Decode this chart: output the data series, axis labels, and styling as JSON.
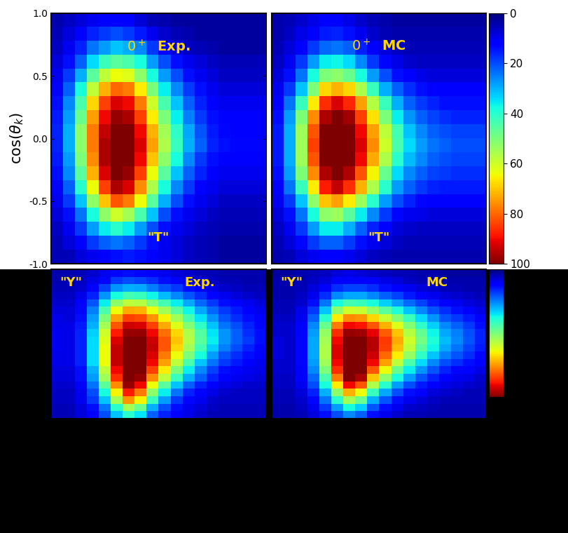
{
  "text_color": "#FFD700",
  "colorbar_ticks": [
    0,
    20,
    40,
    60,
    80,
    100
  ],
  "vmin": 0,
  "vmax": 100,
  "T_exp": [
    [
      5,
      5,
      8,
      10,
      12,
      14,
      15,
      14,
      12,
      10,
      8,
      6,
      5,
      4,
      3,
      3,
      3,
      3
    ],
    [
      5,
      8,
      12,
      18,
      22,
      24,
      22,
      18,
      14,
      10,
      8,
      6,
      5,
      4,
      3,
      3,
      3,
      3
    ],
    [
      6,
      10,
      18,
      28,
      36,
      40,
      36,
      28,
      20,
      14,
      10,
      8,
      6,
      5,
      4,
      4,
      4,
      4
    ],
    [
      8,
      14,
      24,
      38,
      52,
      60,
      55,
      44,
      32,
      20,
      14,
      10,
      8,
      6,
      5,
      5,
      5,
      5
    ],
    [
      10,
      18,
      32,
      52,
      70,
      82,
      78,
      64,
      46,
      30,
      20,
      14,
      10,
      8,
      6,
      6,
      6,
      6
    ],
    [
      12,
      22,
      40,
      64,
      84,
      96,
      92,
      76,
      56,
      38,
      26,
      18,
      12,
      10,
      8,
      8,
      8,
      8
    ],
    [
      14,
      26,
      46,
      72,
      92,
      100,
      98,
      84,
      64,
      46,
      32,
      22,
      16,
      12,
      10,
      10,
      10,
      10
    ],
    [
      15,
      28,
      50,
      76,
      96,
      100,
      100,
      90,
      70,
      52,
      38,
      26,
      18,
      14,
      12,
      12,
      12,
      12
    ],
    [
      16,
      30,
      52,
      78,
      96,
      100,
      100,
      92,
      74,
      56,
      42,
      30,
      22,
      16,
      14,
      13,
      13,
      13
    ],
    [
      16,
      30,
      52,
      78,
      94,
      100,
      100,
      90,
      72,
      55,
      41,
      29,
      21,
      15,
      13,
      12,
      12,
      12
    ],
    [
      15,
      28,
      48,
      74,
      90,
      98,
      96,
      84,
      66,
      50,
      36,
      25,
      18,
      14,
      12,
      11,
      11,
      11
    ],
    [
      14,
      26,
      44,
      68,
      84,
      92,
      90,
      78,
      60,
      44,
      32,
      22,
      16,
      12,
      10,
      10,
      10,
      10
    ],
    [
      12,
      22,
      38,
      58,
      72,
      80,
      78,
      66,
      50,
      36,
      26,
      18,
      14,
      10,
      8,
      8,
      8,
      8
    ],
    [
      10,
      18,
      30,
      46,
      58,
      64,
      62,
      52,
      38,
      28,
      20,
      14,
      10,
      8,
      6,
      6,
      6,
      6
    ],
    [
      8,
      14,
      22,
      34,
      42,
      46,
      44,
      38,
      28,
      20,
      14,
      10,
      8,
      6,
      5,
      5,
      5,
      5
    ],
    [
      6,
      10,
      16,
      24,
      28,
      32,
      30,
      26,
      18,
      12,
      8,
      6,
      5,
      4,
      3,
      3,
      3,
      3
    ],
    [
      5,
      8,
      12,
      16,
      18,
      20,
      18,
      15,
      10,
      7,
      5,
      4,
      3,
      3,
      3,
      3,
      3,
      3
    ],
    [
      4,
      6,
      8,
      10,
      12,
      12,
      11,
      8,
      5,
      4,
      3,
      3,
      3,
      3,
      3,
      3,
      3,
      3
    ]
  ],
  "T_mc": [
    [
      4,
      5,
      8,
      10,
      12,
      12,
      10,
      8,
      6,
      5,
      4,
      4,
      4,
      4,
      4,
      4,
      4,
      4
    ],
    [
      5,
      8,
      13,
      18,
      22,
      22,
      18,
      14,
      10,
      8,
      6,
      5,
      5,
      5,
      5,
      5,
      5,
      5
    ],
    [
      6,
      10,
      18,
      28,
      36,
      36,
      30,
      22,
      16,
      11,
      8,
      7,
      6,
      6,
      6,
      6,
      6,
      6
    ],
    [
      8,
      14,
      24,
      38,
      52,
      54,
      46,
      36,
      26,
      18,
      13,
      10,
      9,
      8,
      8,
      8,
      8,
      8
    ],
    [
      10,
      18,
      32,
      52,
      70,
      74,
      66,
      54,
      40,
      28,
      20,
      16,
      13,
      12,
      11,
      11,
      11,
      11
    ],
    [
      12,
      24,
      42,
      66,
      88,
      94,
      86,
      72,
      56,
      40,
      28,
      22,
      18,
      16,
      15,
      15,
      15,
      15
    ],
    [
      14,
      28,
      50,
      76,
      96,
      100,
      96,
      82,
      65,
      48,
      34,
      26,
      22,
      19,
      18,
      17,
      17,
      17
    ],
    [
      15,
      30,
      54,
      82,
      100,
      100,
      100,
      90,
      73,
      56,
      40,
      31,
      26,
      22,
      20,
      19,
      19,
      19
    ],
    [
      15,
      30,
      54,
      84,
      100,
      100,
      100,
      92,
      76,
      60,
      44,
      34,
      28,
      24,
      22,
      20,
      20,
      20
    ],
    [
      15,
      30,
      54,
      82,
      100,
      100,
      100,
      90,
      74,
      58,
      43,
      32,
      26,
      22,
      20,
      19,
      19,
      19
    ],
    [
      14,
      28,
      50,
      76,
      96,
      100,
      97,
      84,
      67,
      50,
      36,
      27,
      22,
      19,
      17,
      16,
      16,
      16
    ],
    [
      12,
      24,
      42,
      66,
      86,
      92,
      87,
      74,
      57,
      42,
      30,
      22,
      18,
      16,
      14,
      14,
      14,
      14
    ],
    [
      10,
      18,
      32,
      50,
      68,
      72,
      68,
      56,
      42,
      30,
      22,
      17,
      14,
      12,
      11,
      11,
      11,
      11
    ],
    [
      8,
      14,
      24,
      38,
      50,
      52,
      48,
      38,
      28,
      20,
      14,
      11,
      9,
      8,
      8,
      8,
      8,
      8
    ],
    [
      6,
      10,
      18,
      28,
      36,
      37,
      34,
      26,
      18,
      13,
      9,
      7,
      6,
      6,
      6,
      6,
      6,
      6
    ],
    [
      5,
      8,
      12,
      18,
      23,
      24,
      22,
      16,
      11,
      8,
      6,
      5,
      5,
      5,
      5,
      5,
      5,
      5
    ],
    [
      4,
      6,
      9,
      12,
      15,
      16,
      14,
      10,
      7,
      5,
      4,
      4,
      4,
      4,
      4,
      4,
      4,
      4
    ],
    [
      4,
      5,
      7,
      9,
      11,
      11,
      9,
      7,
      5,
      4,
      3,
      3,
      3,
      3,
      3,
      3,
      3,
      3
    ]
  ],
  "Y_exp": [
    [
      5,
      5,
      8,
      12,
      20,
      32,
      40,
      35,
      22,
      16,
      12,
      9,
      7,
      5,
      5,
      5,
      5,
      5
    ],
    [
      5,
      5,
      8,
      14,
      24,
      40,
      55,
      48,
      30,
      20,
      14,
      10,
      8,
      6,
      5,
      5,
      5,
      5
    ],
    [
      6,
      6,
      10,
      18,
      32,
      55,
      75,
      65,
      42,
      28,
      18,
      13,
      10,
      7,
      6,
      6,
      6,
      6
    ],
    [
      6,
      6,
      10,
      20,
      38,
      65,
      88,
      78,
      52,
      36,
      24,
      16,
      12,
      9,
      7,
      6,
      6,
      6
    ],
    [
      7,
      7,
      12,
      24,
      46,
      76,
      98,
      90,
      64,
      46,
      32,
      22,
      16,
      11,
      9,
      8,
      7,
      7
    ],
    [
      8,
      8,
      14,
      28,
      54,
      86,
      100,
      98,
      76,
      58,
      42,
      30,
      22,
      16,
      12,
      10,
      9,
      8
    ],
    [
      8,
      8,
      14,
      30,
      58,
      90,
      100,
      100,
      84,
      66,
      50,
      36,
      26,
      19,
      14,
      12,
      10,
      9
    ],
    [
      9,
      9,
      16,
      34,
      64,
      94,
      100,
      100,
      90,
      74,
      58,
      44,
      32,
      24,
      18,
      15,
      12,
      10
    ],
    [
      9,
      9,
      16,
      34,
      64,
      94,
      100,
      100,
      92,
      78,
      64,
      50,
      38,
      28,
      21,
      17,
      14,
      11
    ],
    [
      10,
      9,
      16,
      34,
      64,
      94,
      100,
      100,
      94,
      82,
      68,
      55,
      43,
      33,
      25,
      20,
      16,
      13
    ],
    [
      10,
      9,
      16,
      34,
      62,
      92,
      100,
      100,
      93,
      82,
      70,
      57,
      46,
      36,
      27,
      22,
      18,
      14
    ],
    [
      10,
      9,
      16,
      33,
      60,
      88,
      98,
      98,
      90,
      79,
      68,
      56,
      45,
      35,
      27,
      22,
      17,
      14
    ],
    [
      9,
      9,
      15,
      30,
      55,
      82,
      93,
      92,
      84,
      73,
      62,
      51,
      41,
      32,
      24,
      20,
      16,
      13
    ],
    [
      9,
      8,
      14,
      28,
      50,
      74,
      84,
      83,
      75,
      65,
      55,
      44,
      35,
      27,
      21,
      17,
      14,
      11
    ],
    [
      8,
      8,
      13,
      25,
      44,
      64,
      73,
      72,
      64,
      55,
      46,
      37,
      29,
      23,
      18,
      15,
      12,
      10
    ],
    [
      7,
      7,
      11,
      21,
      36,
      52,
      58,
      57,
      50,
      43,
      36,
      29,
      23,
      18,
      14,
      12,
      10,
      8
    ],
    [
      6,
      6,
      9,
      16,
      27,
      38,
      43,
      42,
      37,
      31,
      26,
      21,
      17,
      13,
      10,
      8,
      7,
      6
    ],
    [
      5,
      5,
      7,
      12,
      19,
      27,
      30,
      29,
      25,
      21,
      18,
      14,
      11,
      9,
      7,
      6,
      5,
      5
    ],
    [
      4,
      5,
      6,
      9,
      13,
      18,
      20,
      19,
      17,
      14,
      12,
      9,
      8,
      6,
      5,
      5,
      4,
      4
    ],
    [
      4,
      4,
      5,
      7,
      10,
      13,
      14,
      13,
      11,
      10,
      8,
      7,
      5,
      5,
      4,
      4,
      4,
      4
    ]
  ],
  "Y_mc": [
    [
      4,
      4,
      5,
      8,
      14,
      20,
      26,
      22,
      14,
      10,
      7,
      5,
      5,
      4,
      4,
      4,
      4,
      4
    ],
    [
      4,
      4,
      6,
      10,
      18,
      28,
      38,
      33,
      21,
      14,
      10,
      7,
      6,
      5,
      4,
      4,
      4,
      4
    ],
    [
      5,
      5,
      7,
      13,
      24,
      40,
      55,
      48,
      30,
      21,
      14,
      10,
      8,
      6,
      5,
      5,
      5,
      5
    ],
    [
      5,
      5,
      8,
      16,
      30,
      52,
      72,
      64,
      42,
      29,
      20,
      14,
      11,
      8,
      7,
      6,
      5,
      5
    ],
    [
      6,
      6,
      10,
      20,
      38,
      66,
      90,
      82,
      56,
      40,
      28,
      20,
      15,
      11,
      9,
      8,
      7,
      6
    ],
    [
      6,
      6,
      11,
      23,
      44,
      78,
      100,
      96,
      70,
      52,
      38,
      28,
      21,
      16,
      12,
      10,
      9,
      7
    ],
    [
      7,
      7,
      12,
      26,
      50,
      86,
      100,
      100,
      82,
      64,
      48,
      36,
      27,
      21,
      16,
      13,
      11,
      9
    ],
    [
      7,
      7,
      13,
      28,
      54,
      90,
      100,
      100,
      90,
      74,
      58,
      44,
      34,
      26,
      20,
      17,
      14,
      11
    ],
    [
      8,
      7,
      13,
      29,
      56,
      92,
      100,
      100,
      93,
      80,
      66,
      53,
      41,
      32,
      25,
      21,
      17,
      13
    ],
    [
      8,
      7,
      13,
      29,
      56,
      92,
      100,
      100,
      95,
      84,
      71,
      58,
      46,
      37,
      29,
      24,
      19,
      15
    ],
    [
      8,
      7,
      13,
      29,
      55,
      90,
      100,
      100,
      95,
      85,
      73,
      60,
      49,
      39,
      31,
      26,
      21,
      16
    ],
    [
      7,
      7,
      12,
      28,
      53,
      86,
      98,
      97,
      91,
      81,
      70,
      57,
      47,
      37,
      29,
      25,
      20,
      16
    ],
    [
      7,
      7,
      12,
      26,
      48,
      78,
      90,
      89,
      82,
      72,
      62,
      51,
      41,
      33,
      26,
      22,
      18,
      14
    ],
    [
      6,
      6,
      10,
      22,
      40,
      66,
      76,
      75,
      68,
      59,
      51,
      42,
      34,
      27,
      21,
      18,
      15,
      12
    ],
    [
      5,
      5,
      9,
      18,
      32,
      52,
      60,
      59,
      53,
      46,
      39,
      32,
      26,
      21,
      17,
      14,
      12,
      9
    ],
    [
      5,
      5,
      7,
      14,
      24,
      38,
      43,
      42,
      38,
      33,
      28,
      23,
      19,
      15,
      12,
      10,
      8,
      7
    ],
    [
      4,
      4,
      6,
      10,
      17,
      26,
      29,
      29,
      26,
      22,
      19,
      15,
      12,
      10,
      8,
      7,
      6,
      5
    ],
    [
      4,
      4,
      5,
      8,
      12,
      17,
      19,
      19,
      17,
      14,
      12,
      10,
      8,
      7,
      5,
      5,
      4,
      4
    ],
    [
      4,
      4,
      5,
      6,
      8,
      11,
      12,
      12,
      11,
      9,
      8,
      6,
      5,
      5,
      4,
      4,
      4,
      4
    ],
    [
      3,
      3,
      4,
      5,
      6,
      8,
      9,
      8,
      7,
      6,
      5,
      5,
      4,
      4,
      3,
      3,
      3,
      3
    ]
  ]
}
